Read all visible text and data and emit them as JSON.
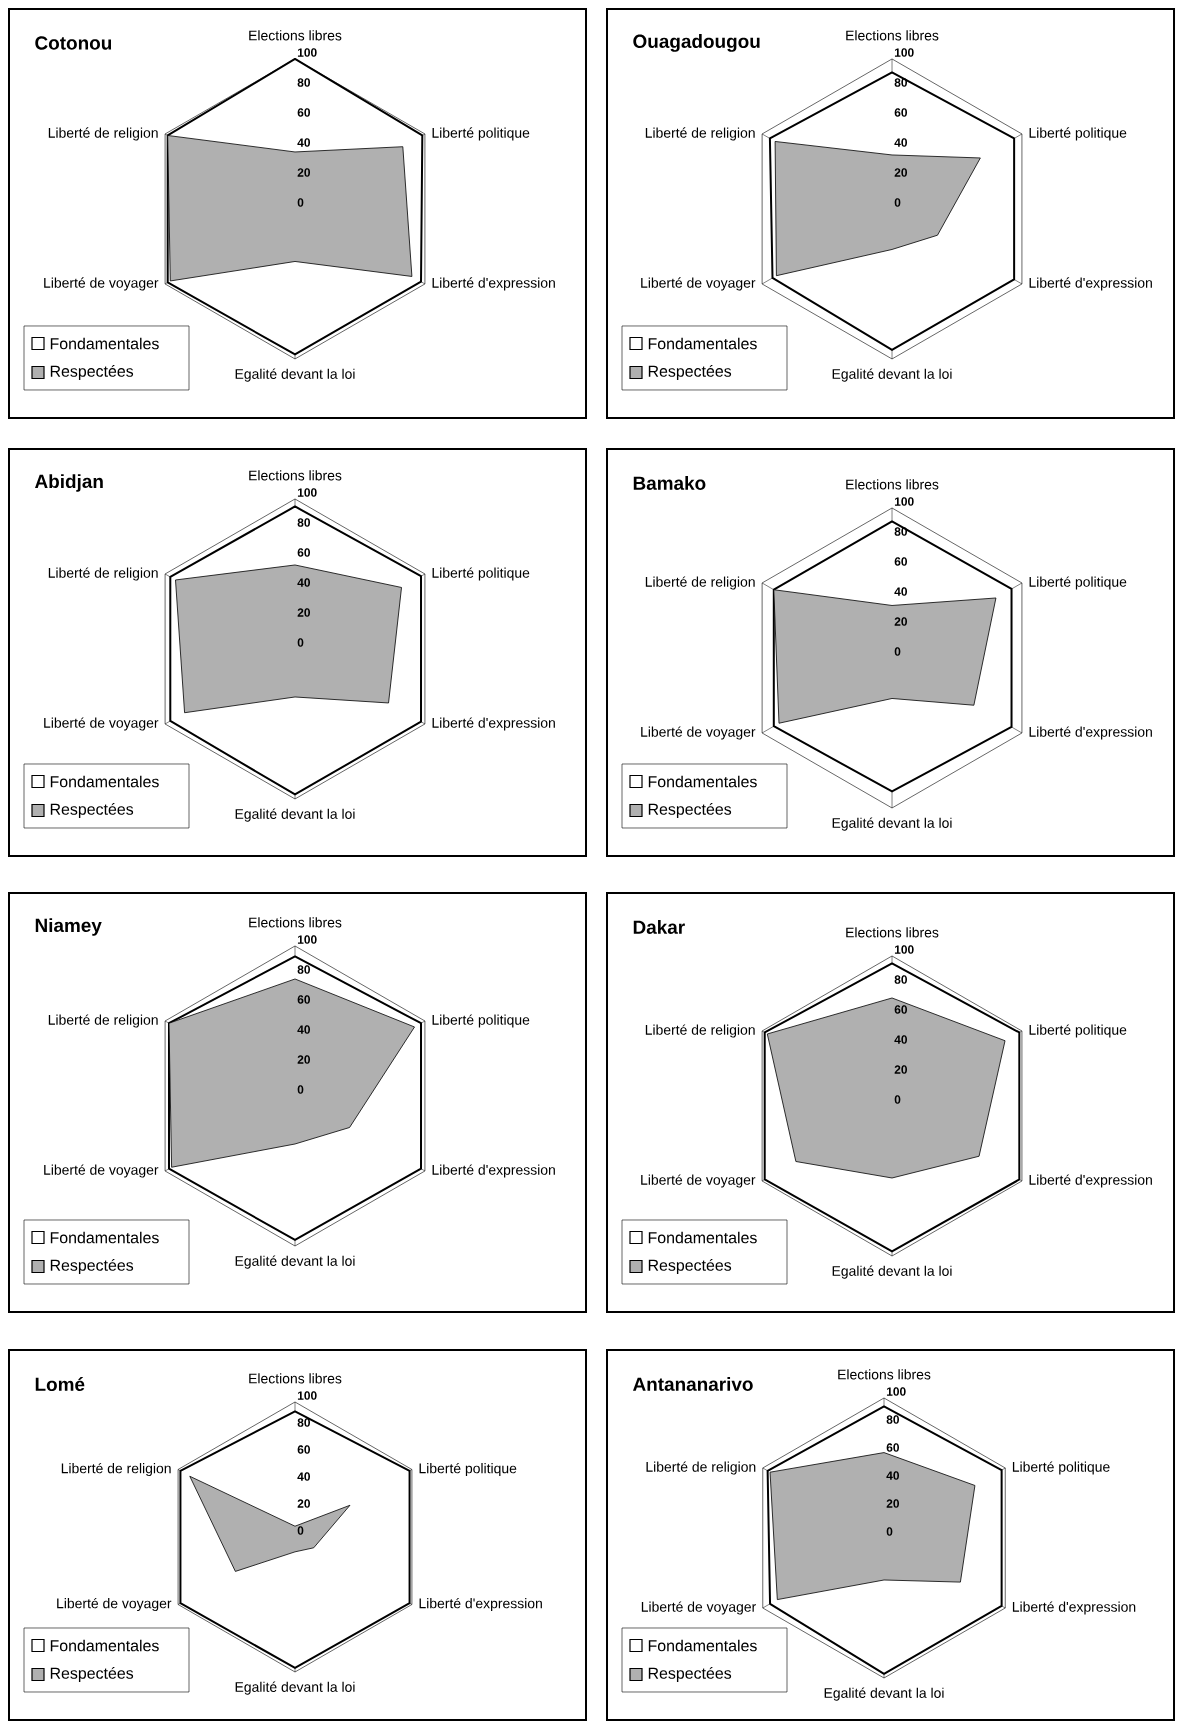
{
  "chart_data": [
    {
      "type": "radar",
      "title": "Cotonou",
      "categories": [
        "Elections libres",
        "Liberté politique",
        "Liberté d'expression",
        "Egalité devant la loi",
        "Liberté de voyager",
        "Liberté de religion"
      ],
      "ylim": [
        0,
        100
      ],
      "yticks": [
        0,
        20,
        40,
        60,
        80,
        100
      ],
      "legend": "bottom left",
      "series": [
        {
          "name": "Fondamentales",
          "color": "#ffffff",
          "values": [
            100,
            98,
            97,
            97,
            98,
            98
          ]
        },
        {
          "name": "Respectées",
          "color": "#b0b0b0",
          "values": [
            38,
            83,
            90,
            35,
            96,
            98
          ]
        }
      ]
    },
    {
      "type": "radar",
      "title": "Ouagadougou",
      "categories": [
        "Elections libres",
        "Liberté politique",
        "Liberté d'expression",
        "Egalité devant la loi",
        "Liberté de voyager",
        "Liberté de religion"
      ],
      "ylim": [
        0,
        100
      ],
      "yticks": [
        0,
        20,
        40,
        60,
        80,
        100
      ],
      "legend": "bottom left",
      "series": [
        {
          "name": "Fondamentales",
          "color": "#ffffff",
          "values": [
            91,
            94,
            94,
            94,
            92,
            94
          ]
        },
        {
          "name": "Respectées",
          "color": "#b0b0b0",
          "values": [
            36,
            68,
            35,
            27,
            89,
            90
          ]
        }
      ]
    },
    {
      "type": "radar",
      "title": "Abidjan",
      "categories": [
        "Elections libres",
        "Liberté politique",
        "Liberté d'expression",
        "Egalité devant la loi",
        "Liberté de voyager",
        "Liberté de religion"
      ],
      "ylim": [
        0,
        100
      ],
      "yticks": [
        0,
        20,
        40,
        60,
        80,
        100
      ],
      "legend": "bottom left",
      "series": [
        {
          "name": "Fondamentales",
          "color": "#ffffff",
          "values": [
            95,
            97,
            97,
            97,
            96,
            96
          ]
        },
        {
          "name": "Respectées",
          "color": "#b0b0b0",
          "values": [
            56,
            82,
            72,
            32,
            85,
            92
          ]
        }
      ]
    },
    {
      "type": "radar",
      "title": "Bamako",
      "categories": [
        "Elections libres",
        "Liberté politique",
        "Liberté d'expression",
        "Egalité devant la loi",
        "Liberté de voyager",
        "Liberté de religion"
      ],
      "ylim": [
        0,
        100
      ],
      "yticks": [
        0,
        20,
        40,
        60,
        80,
        100
      ],
      "legend": "bottom left",
      "series": [
        {
          "name": "Fondamentales",
          "color": "#ffffff",
          "values": [
            91,
            92,
            92,
            89,
            91,
            91
          ]
        },
        {
          "name": "Respectées",
          "color": "#b0b0b0",
          "values": [
            35,
            80,
            63,
            27,
            87,
            91
          ]
        }
      ]
    },
    {
      "type": "radar",
      "title": "Niamey",
      "categories": [
        "Elections libres",
        "Liberté politique",
        "Liberté d'expression",
        "Egalité devant la loi",
        "Liberté de voyager",
        "Liberté de religion"
      ],
      "ylim": [
        0,
        100
      ],
      "yticks": [
        0,
        20,
        40,
        60,
        80,
        100
      ],
      "legend": "bottom left",
      "series": [
        {
          "name": "Fondamentales",
          "color": "#ffffff",
          "values": [
            93,
            97,
            97,
            96,
            97,
            97
          ]
        },
        {
          "name": "Respectées",
          "color": "#b0b0b0",
          "values": [
            78,
            92,
            42,
            32,
            95,
            97
          ]
        }
      ]
    },
    {
      "type": "radar",
      "title": "Dakar",
      "categories": [
        "Elections libres",
        "Liberté politique",
        "Liberté d'expression",
        "Egalité devant la loi",
        "Liberté de voyager",
        "Liberté de religion"
      ],
      "ylim": [
        0,
        100
      ],
      "yticks": [
        0,
        20,
        40,
        60,
        80,
        100
      ],
      "legend": "bottom left",
      "series": [
        {
          "name": "Fondamentales",
          "color": "#ffffff",
          "values": [
            95,
            98,
            98,
            97,
            98,
            98
          ]
        },
        {
          "name": "Respectées",
          "color": "#b0b0b0",
          "values": [
            72,
            87,
            67,
            48,
            74,
            96
          ]
        }
      ]
    },
    {
      "type": "radar",
      "title": "Lomé",
      "categories": [
        "Elections libres",
        "Liberté politique",
        "Liberté d'expression",
        "Egalité devant la loi",
        "Liberté de voyager",
        "Liberté de religion"
      ],
      "ylim": [
        0,
        100
      ],
      "yticks": [
        0,
        20,
        40,
        60,
        80,
        100
      ],
      "legend": "bottom left",
      "series": [
        {
          "name": "Fondamentales",
          "color": "#ffffff",
          "values": [
            93,
            98,
            98,
            97,
            98,
            98
          ]
        },
        {
          "name": "Respectées",
          "color": "#b0b0b0",
          "values": [
            8,
            47,
            16,
            11,
            51,
            90
          ]
        }
      ]
    },
    {
      "type": "radar",
      "title": "Antananarivo",
      "categories": [
        "Elections libres",
        "Liberté politique",
        "Liberté d'expression",
        "Egalité devant la loi",
        "Liberté de voyager",
        "Liberté de religion"
      ],
      "ylim": [
        0,
        100
      ],
      "yticks": [
        0,
        20,
        40,
        60,
        80,
        100
      ],
      "legend": "bottom left",
      "series": [
        {
          "name": "Fondamentales",
          "color": "#ffffff",
          "values": [
            94,
            97,
            97,
            97,
            94,
            96
          ]
        },
        {
          "name": "Respectées",
          "color": "#b0b0b0",
          "values": [
            61,
            75,
            63,
            30,
            88,
            94
          ]
        }
      ]
    }
  ]
}
